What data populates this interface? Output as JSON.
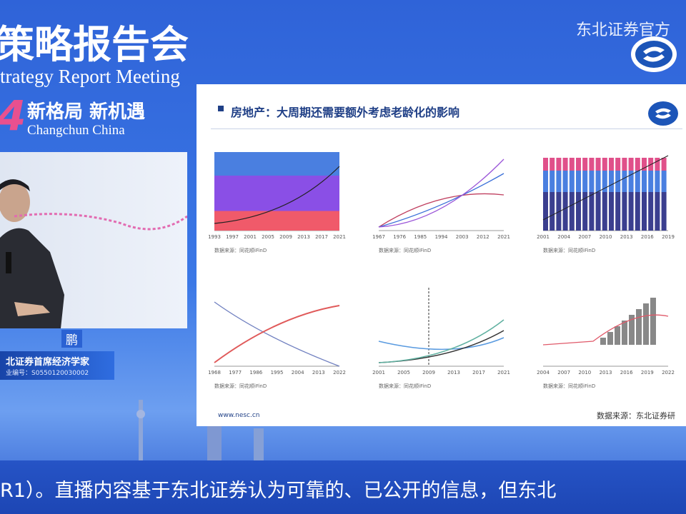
{
  "header": {
    "title": "策略报告会",
    "subtitle": "trategy Report Meeting",
    "year_digit": "4",
    "slogan": "新格局 新机遇",
    "location": "Changchun China"
  },
  "broadcaster": "东北证券官方",
  "speaker": {
    "name": "鹏",
    "title": "北证券首席经济学家",
    "license": "业编号：S0550120030002"
  },
  "slide": {
    "title": "房地产：大周期还需要额外考虑老龄化的影响",
    "website": "www.nesc.cn",
    "source": "数据来源：东北证券研",
    "panels": [
      {
        "x_labels": [
          "1993",
          "1997",
          "2001",
          "2005",
          "2009",
          "2013",
          "2017",
          "2021"
        ],
        "source": "数据来源：同花顺iFinD"
      },
      {
        "x_labels": [
          "1967",
          "1976",
          "1985",
          "1994",
          "2003",
          "2012",
          "2021"
        ],
        "source": "数据来源：同花顺iFinD"
      },
      {
        "x_labels": [
          "2001",
          "2004",
          "2007",
          "2010",
          "2013",
          "2016",
          "2019"
        ],
        "source": "数据来源：同花顺iFinD"
      },
      {
        "x_labels": [
          "1968",
          "1977",
          "1986",
          "1995",
          "2004",
          "2013",
          "2022"
        ],
        "source": "数据来源：同花顺iFinD"
      },
      {
        "x_labels": [
          "2001",
          "2005",
          "2009",
          "2013",
          "2017",
          "2021"
        ],
        "source": "数据来源：同花顺iFinD"
      },
      {
        "x_labels": [
          "2004",
          "2007",
          "2010",
          "2013",
          "2016",
          "2019",
          "2022"
        ],
        "source": "数据来源：同花顺iFinD"
      }
    ]
  },
  "ticker": "R1）。直播内容基于东北证券认为可靠的、已公开的信息，但东北"
}
